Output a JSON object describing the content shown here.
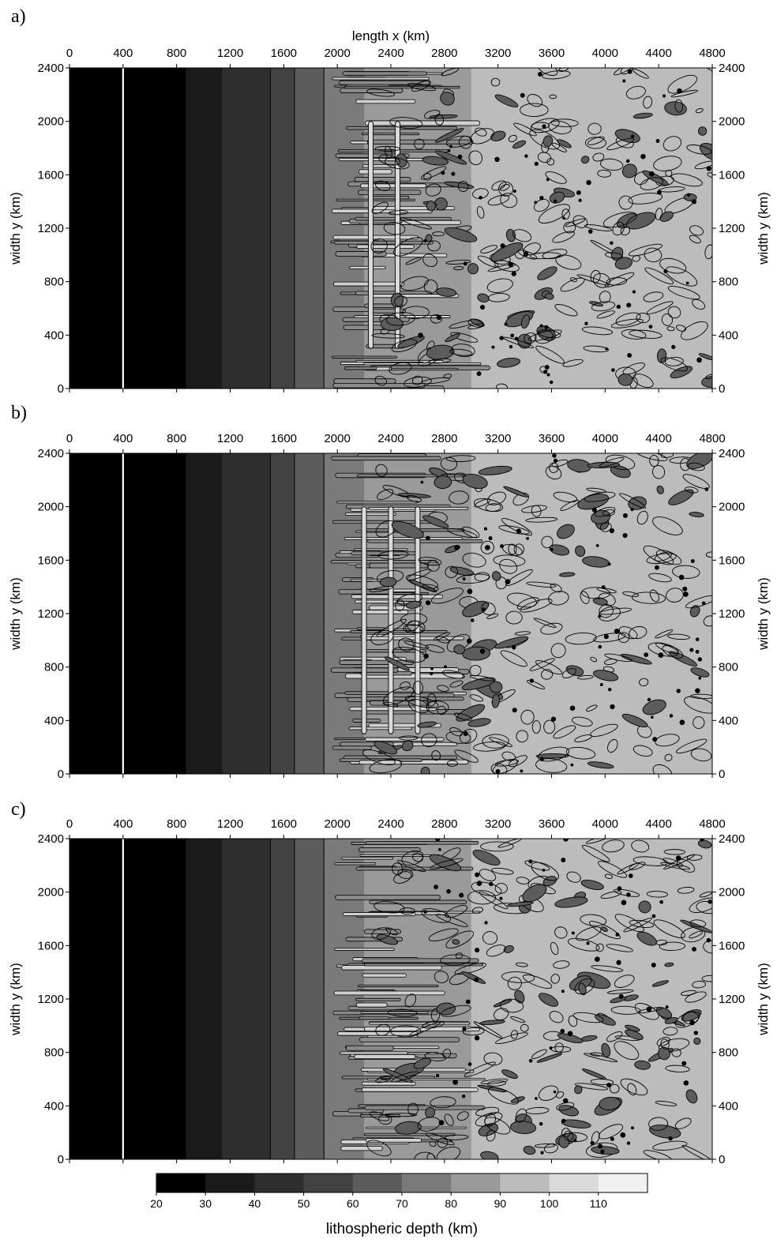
{
  "figure": {
    "panels": [
      {
        "label": "a)",
        "variant": "a"
      },
      {
        "label": "b)",
        "variant": "b"
      },
      {
        "label": "c)",
        "variant": "c"
      }
    ],
    "top_xlabel": "length x (km)",
    "ylabel": "width y (km)",
    "colorbar_label": "lithospheric depth (km)"
  },
  "chart_data": {
    "type": "heatmap",
    "xlabel": "length x (km)",
    "ylabel": "width y (km)",
    "xlim": [
      0,
      4800
    ],
    "ylim": [
      0,
      2400
    ],
    "x_ticks": [
      0,
      400,
      800,
      1200,
      1600,
      2000,
      2400,
      2800,
      3200,
      3600,
      4000,
      4400,
      4800
    ],
    "y_ticks": [
      0,
      400,
      800,
      1200,
      1600,
      2000,
      2400
    ],
    "x_tick_labels": [
      "0",
      "400",
      "800",
      "1200",
      "1600",
      "2000",
      "2400",
      "2800",
      "3200",
      "3600",
      "4000",
      "4400",
      "4800"
    ],
    "y_tick_labels": [
      "0",
      "400",
      "800",
      "1200",
      "1600",
      "2000",
      "2400"
    ],
    "colorbar": {
      "label": "lithospheric depth (km)",
      "bounds": [
        20,
        30,
        40,
        50,
        60,
        70,
        80,
        90,
        100,
        110,
        120
      ],
      "tick_labels": [
        "20",
        "30",
        "40",
        "50",
        "60",
        "70",
        "80",
        "90",
        "100",
        "110"
      ],
      "colors": [
        "#000000",
        "#1b1b1b",
        "#2e2e2e",
        "#424242",
        "#5c5c5c",
        "#7a7a7a",
        "#9a9a9a",
        "#bcbcbc",
        "#dadada",
        "#f0f0f0"
      ]
    },
    "depth_bands_along_x": [
      {
        "x0": 0,
        "x1": 400,
        "depth": 25
      },
      {
        "x0": 400,
        "x1": 870,
        "depth": 25
      },
      {
        "x0": 870,
        "x1": 1050,
        "depth": 32
      },
      {
        "x0": 1050,
        "x1": 1140,
        "depth": 36
      },
      {
        "x0": 1140,
        "x1": 1300,
        "depth": 42
      },
      {
        "x0": 1300,
        "x1": 1500,
        "depth": 48
      },
      {
        "x0": 1500,
        "x1": 1680,
        "depth": 58
      },
      {
        "x0": 1680,
        "x1": 1900,
        "depth": 68
      },
      {
        "x0": 1900,
        "x1": 2200,
        "depth": 78
      },
      {
        "x0": 2200,
        "x1": 3000,
        "depth": 85
      },
      {
        "x0": 3000,
        "x1": 4800,
        "depth": 95
      }
    ],
    "panels": [
      {
        "label": "a)",
        "description_value": "lithospheric depth field"
      },
      {
        "label": "b)",
        "description_value": "lithospheric depth field"
      },
      {
        "label": "c)",
        "description_value": "lithospheric depth field"
      }
    ],
    "grid": false
  },
  "colors": {
    "white_line": "#ffffff",
    "contour": "#000000"
  }
}
